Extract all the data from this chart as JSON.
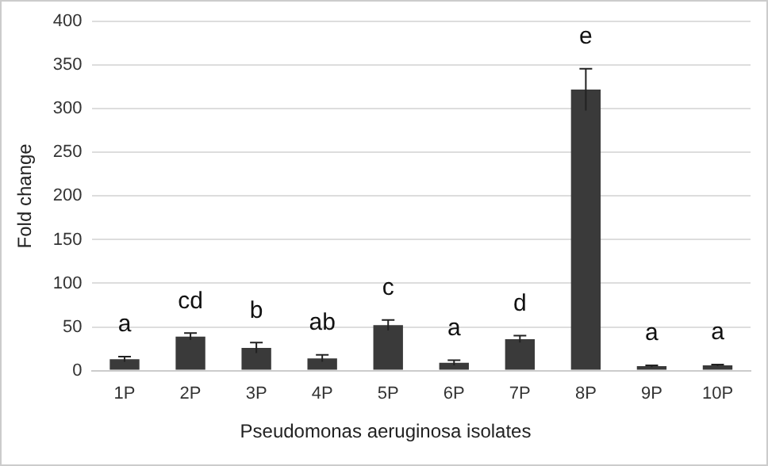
{
  "chart_data": {
    "type": "bar",
    "xlabel": "Pseudomonas aeruginosa isolates",
    "ylabel": "Fold change",
    "categories": [
      "1P",
      "2P",
      "3P",
      "4P",
      "5P",
      "6P",
      "7P",
      "8P",
      "9P",
      "10P"
    ],
    "values": [
      13,
      39,
      26,
      14,
      52,
      9,
      36,
      322,
      5,
      6
    ],
    "errors": [
      3,
      4,
      6,
      4,
      6,
      3,
      4,
      24,
      1,
      1
    ],
    "color": "#3a3a3a",
    "ylim": [
      0,
      400
    ],
    "yticks": [
      0,
      50,
      100,
      150,
      200,
      250,
      300,
      350,
      400
    ],
    "grid": "y",
    "legend": false,
    "annotations": [
      "a",
      "cd",
      "b",
      "ab",
      "c",
      "a",
      "d",
      "e",
      "a",
      "a"
    ]
  }
}
